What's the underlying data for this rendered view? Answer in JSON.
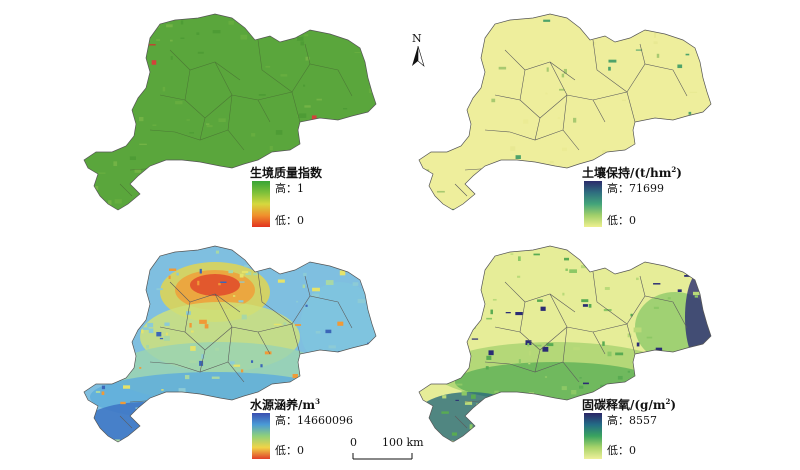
{
  "north": "N",
  "scale": {
    "start": "0",
    "end": "100 km"
  },
  "panels": [
    {
      "id": "habitat",
      "title": "生境质量指数",
      "unit": "",
      "high_label": "高：",
      "high_value": "1",
      "low_label": "低：",
      "low_value": "0",
      "ramp": [
        "#38a436",
        "#7dc03a",
        "#d6d83e",
        "#f08f2d",
        "#e2321f"
      ],
      "fill": [
        "#5aa63c",
        "#66ad3f",
        "#72b345",
        "#4e9c35",
        "#d4413a",
        "#cc3a2e"
      ]
    },
    {
      "id": "soil",
      "title": "土壤保持/(t/hm",
      "unit_sup": "2",
      "unit_tail": ")",
      "high_label": "高：",
      "high_value": "71699",
      "low_label": "低：",
      "low_value": "0",
      "ramp": [
        "#2b2b6b",
        "#2f6e7f",
        "#43a47a",
        "#a2d06a",
        "#eef08f"
      ],
      "fill": [
        "#eeee9c",
        "#ebeb95",
        "#e8e993",
        "#a8c970",
        "#4ea36a"
      ]
    },
    {
      "id": "water",
      "title": "水源涵养/m",
      "unit_sup": "3",
      "unit_tail": "",
      "high_label": "高：",
      "high_value": "14660096",
      "low_label": "低：",
      "low_value": "0",
      "ramp": [
        "#3a4fb0",
        "#4a9ad6",
        "#8fd07a",
        "#f1d447",
        "#e13f2a"
      ],
      "fill": [
        "#7fbfe0",
        "#8ccbd6",
        "#a8d8a6",
        "#e5e36a",
        "#f09a37",
        "#3b66b8"
      ]
    },
    {
      "id": "carbon",
      "title": "固碳释氧/(g/m",
      "unit_sup": "2",
      "unit_tail": ")",
      "high_label": "高：",
      "high_value": "8557",
      "low_label": "低：",
      "low_value": "0",
      "ramp": [
        "#2b2566",
        "#236b86",
        "#3aa35f",
        "#a9d46a",
        "#eef09b"
      ],
      "fill": [
        "#e6ed98",
        "#b9da79",
        "#8cc865",
        "#59ab52",
        "#2a2c74"
      ]
    }
  ]
}
